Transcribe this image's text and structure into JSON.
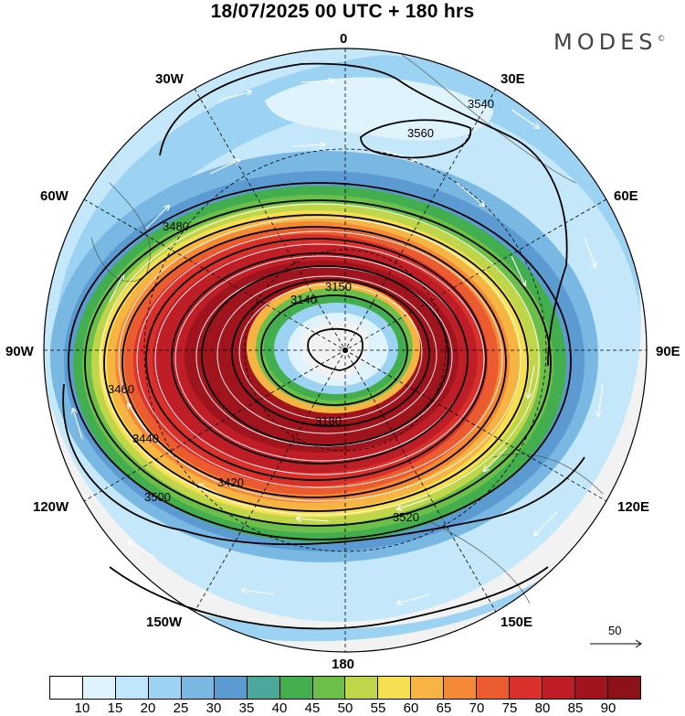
{
  "title": "18/07/2025  00 UTC  + 180 hrs",
  "logo": "MODES",
  "logo_mark": "©",
  "lon_labels": {
    "n0": "0",
    "n30e": "30E",
    "n60e": "60E",
    "n90e": "90E",
    "n120e": "120E",
    "n150e": "150E",
    "n180": "180",
    "n150w": "150W",
    "n120w": "120W",
    "n90w": "90W",
    "n60w": "60W",
    "n30w": "30W"
  },
  "contour_labels": [
    "3140",
    "3150",
    "3180",
    "3420",
    "3440",
    "3460",
    "3480",
    "3500",
    "3520",
    "3540",
    "3560"
  ],
  "reference_vector": "50",
  "colorbar": {
    "colors": [
      "#ffffff",
      "#dff3fd",
      "#bfe6fa",
      "#9dd3f2",
      "#7ab8e4",
      "#5b9bd2",
      "#4aa79a",
      "#43ae4e",
      "#6cc04a",
      "#bfd54a",
      "#f6df50",
      "#f6b443",
      "#f58a36",
      "#ea5c30",
      "#d9302b",
      "#c01e26",
      "#a0141e",
      "#8a1218"
    ],
    "labels": [
      "10",
      "15",
      "20",
      "25",
      "30",
      "35",
      "40",
      "45",
      "50",
      "55",
      "60",
      "65",
      "70",
      "75",
      "80",
      "85",
      "90"
    ]
  }
}
